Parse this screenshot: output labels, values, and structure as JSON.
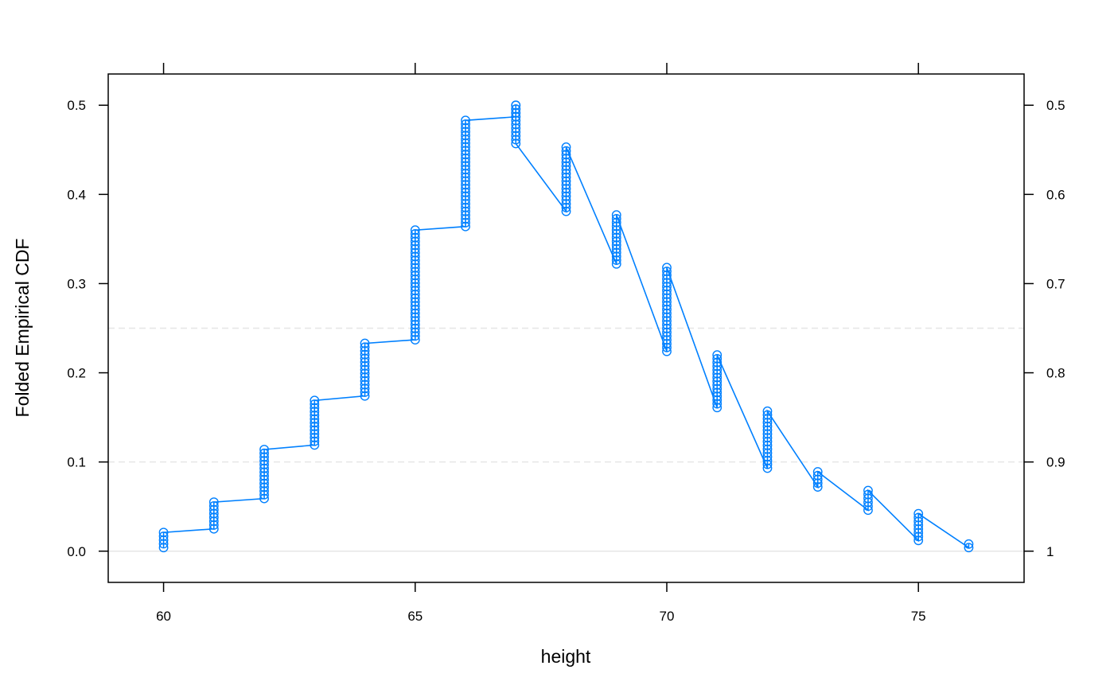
{
  "chart_data": {
    "type": "line",
    "xlabel": "height",
    "ylabel": "Folded Empirical CDF",
    "xlim": [
      58.9,
      77.1
    ],
    "ylim": [
      -0.035,
      0.535
    ],
    "x_ticks": [
      60,
      65,
      70,
      75
    ],
    "y_ticks": [
      0.0,
      0.1,
      0.2,
      0.3,
      0.4,
      0.5
    ],
    "y_tick_labels": [
      "0.0",
      "0.1",
      "0.2",
      "0.3",
      "0.4",
      "0.5"
    ],
    "y2_ticks": [
      0.0,
      0.1,
      0.2,
      0.3,
      0.4,
      0.5
    ],
    "y2_tick_labels": [
      "1",
      "0.9",
      "0.8",
      "0.7",
      "0.6",
      "0.5"
    ],
    "reference_lines": [
      0.0,
      0.1,
      0.25
    ],
    "grid": false,
    "colors": {
      "series": "#0080ff",
      "reference": "#e6e6e6",
      "axis": "#000000"
    },
    "series": [
      {
        "marker": "open-circle",
        "steps": [
          {
            "x": 60,
            "low": 0.004,
            "high": 0.021
          },
          {
            "x": 61,
            "low": 0.025,
            "high": 0.055
          },
          {
            "x": 62,
            "low": 0.059,
            "high": 0.114
          },
          {
            "x": 63,
            "low": 0.119,
            "high": 0.169
          },
          {
            "x": 64,
            "low": 0.174,
            "high": 0.233
          },
          {
            "x": 65,
            "low": 0.237,
            "high": 0.36
          },
          {
            "x": 66,
            "low": 0.364,
            "high": 0.483
          },
          {
            "x": 67,
            "low": 0.487,
            "high": 0.5,
            "fold_high": 0.5,
            "fold_low": 0.457
          },
          {
            "x": 68,
            "low": 0.381,
            "high": 0.453
          },
          {
            "x": 69,
            "low": 0.322,
            "high": 0.377
          },
          {
            "x": 70,
            "low": 0.224,
            "high": 0.318
          },
          {
            "x": 71,
            "low": 0.161,
            "high": 0.22
          },
          {
            "x": 72,
            "low": 0.093,
            "high": 0.157
          },
          {
            "x": 73,
            "low": 0.072,
            "high": 0.089
          },
          {
            "x": 74,
            "low": 0.046,
            "high": 0.068
          },
          {
            "x": 75,
            "low": 0.012,
            "high": 0.042
          },
          {
            "x": 76,
            "low": 0.004,
            "high": 0.008
          }
        ]
      }
    ]
  }
}
